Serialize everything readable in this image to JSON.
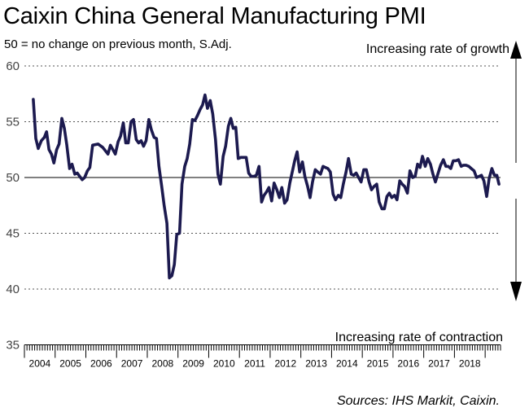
{
  "title": "Caixin China General Manufacturing PMI",
  "subtitle": "50 = no change on previous month, S.Adj.",
  "source": "Sources: IHS Markit, Caixin.",
  "chart_data": {
    "type": "line",
    "annotations": {
      "top": "Increasing rate of growth",
      "bottom": "Increasing rate of contraction"
    },
    "ylim": [
      35,
      60
    ],
    "yticks": [
      "60",
      "55",
      "50",
      "45",
      "40",
      "35"
    ],
    "reference_line": 50,
    "x_years": [
      "2004",
      "2005",
      "2006",
      "2007",
      "2008",
      "2009",
      "2010",
      "2011",
      "2012",
      "2013",
      "2014",
      "2015",
      "2016",
      "2017",
      "2018"
    ],
    "series": [
      {
        "color": "#1c1a4f",
        "points": [
          [
            2004.29,
            57.0
          ],
          [
            2004.37,
            53.5
          ],
          [
            2004.45,
            52.6
          ],
          [
            2004.55,
            53.3
          ],
          [
            2004.65,
            53.6
          ],
          [
            2004.72,
            54.1
          ],
          [
            2004.8,
            52.5
          ],
          [
            2004.88,
            52.1
          ],
          [
            2004.96,
            51.3
          ],
          [
            2005.05,
            52.5
          ],
          [
            2005.13,
            53.0
          ],
          [
            2005.22,
            55.3
          ],
          [
            2005.3,
            54.4
          ],
          [
            2005.38,
            52.9
          ],
          [
            2005.47,
            50.8
          ],
          [
            2005.55,
            51.2
          ],
          [
            2005.64,
            50.3
          ],
          [
            2005.72,
            50.4
          ],
          [
            2005.8,
            50.1
          ],
          [
            2005.88,
            49.8
          ],
          [
            2005.96,
            50.0
          ],
          [
            2006.05,
            50.6
          ],
          [
            2006.13,
            50.9
          ],
          [
            2006.22,
            52.9
          ],
          [
            2006.4,
            53.0
          ],
          [
            2006.55,
            52.7
          ],
          [
            2006.72,
            52.1
          ],
          [
            2006.8,
            52.9
          ],
          [
            2006.88,
            52.5
          ],
          [
            2006.96,
            52.1
          ],
          [
            2007.05,
            53.2
          ],
          [
            2007.13,
            53.7
          ],
          [
            2007.22,
            54.9
          ],
          [
            2007.3,
            53.1
          ],
          [
            2007.38,
            53.1
          ],
          [
            2007.47,
            55.0
          ],
          [
            2007.55,
            55.2
          ],
          [
            2007.64,
            53.4
          ],
          [
            2007.72,
            53.1
          ],
          [
            2007.8,
            53.3
          ],
          [
            2007.88,
            52.8
          ],
          [
            2007.96,
            53.3
          ],
          [
            2008.05,
            55.2
          ],
          [
            2008.13,
            54.3
          ],
          [
            2008.22,
            53.6
          ],
          [
            2008.3,
            53.5
          ],
          [
            2008.38,
            51.0
          ],
          [
            2008.47,
            49.2
          ],
          [
            2008.55,
            47.5
          ],
          [
            2008.64,
            45.9
          ],
          [
            2008.72,
            41.0
          ],
          [
            2008.8,
            41.2
          ],
          [
            2008.88,
            42.2
          ],
          [
            2008.96,
            44.9
          ],
          [
            2009.05,
            45.0
          ],
          [
            2009.13,
            49.4
          ],
          [
            2009.22,
            51.0
          ],
          [
            2009.3,
            51.7
          ],
          [
            2009.38,
            53.0
          ],
          [
            2009.47,
            55.2
          ],
          [
            2009.55,
            55.1
          ],
          [
            2009.64,
            55.6
          ],
          [
            2009.72,
            56.1
          ],
          [
            2009.8,
            56.5
          ],
          [
            2009.88,
            57.4
          ],
          [
            2009.96,
            56.2
          ],
          [
            2010.05,
            56.9
          ],
          [
            2010.13,
            55.7
          ],
          [
            2010.22,
            53.4
          ],
          [
            2010.3,
            50.3
          ],
          [
            2010.38,
            49.4
          ],
          [
            2010.47,
            51.9
          ],
          [
            2010.55,
            52.8
          ],
          [
            2010.64,
            54.6
          ],
          [
            2010.72,
            55.3
          ],
          [
            2010.8,
            54.4
          ],
          [
            2010.88,
            54.5
          ],
          [
            2010.96,
            51.7
          ],
          [
            2011.05,
            51.8
          ],
          [
            2011.22,
            51.8
          ],
          [
            2011.3,
            50.4
          ],
          [
            2011.38,
            50.1
          ],
          [
            2011.47,
            50.1
          ],
          [
            2011.55,
            50.2
          ],
          [
            2011.64,
            51.0
          ],
          [
            2011.72,
            47.8
          ],
          [
            2011.8,
            48.4
          ],
          [
            2011.88,
            48.7
          ],
          [
            2011.96,
            49.1
          ],
          [
            2012.05,
            47.9
          ],
          [
            2012.13,
            49.5
          ],
          [
            2012.22,
            48.9
          ],
          [
            2012.3,
            48.2
          ],
          [
            2012.38,
            49.1
          ],
          [
            2012.47,
            47.7
          ],
          [
            2012.55,
            48.0
          ],
          [
            2012.64,
            49.5
          ],
          [
            2012.72,
            50.5
          ],
          [
            2012.8,
            51.5
          ],
          [
            2012.88,
            52.3
          ],
          [
            2012.96,
            50.5
          ],
          [
            2013.05,
            51.4
          ],
          [
            2013.13,
            50.1
          ],
          [
            2013.22,
            49.2
          ],
          [
            2013.3,
            48.2
          ],
          [
            2013.38,
            49.6
          ],
          [
            2013.47,
            50.7
          ],
          [
            2013.55,
            50.5
          ],
          [
            2013.64,
            50.3
          ],
          [
            2013.72,
            51.0
          ],
          [
            2013.8,
            50.9
          ],
          [
            2013.88,
            50.8
          ],
          [
            2013.96,
            50.5
          ],
          [
            2014.05,
            48.5
          ],
          [
            2014.13,
            48.0
          ],
          [
            2014.22,
            48.4
          ],
          [
            2014.3,
            48.2
          ],
          [
            2014.38,
            49.4
          ],
          [
            2014.47,
            50.5
          ],
          [
            2014.55,
            51.7
          ],
          [
            2014.64,
            50.3
          ],
          [
            2014.72,
            50.2
          ],
          [
            2014.8,
            50.4
          ],
          [
            2014.88,
            50.0
          ],
          [
            2014.96,
            49.6
          ],
          [
            2015.05,
            50.7
          ],
          [
            2015.13,
            50.7
          ],
          [
            2015.22,
            49.6
          ],
          [
            2015.3,
            48.9
          ],
          [
            2015.38,
            49.2
          ],
          [
            2015.47,
            49.4
          ],
          [
            2015.55,
            47.8
          ],
          [
            2015.64,
            47.2
          ],
          [
            2015.72,
            47.2
          ],
          [
            2015.8,
            48.3
          ],
          [
            2015.88,
            48.6
          ],
          [
            2015.96,
            48.2
          ],
          [
            2016.05,
            48.4
          ],
          [
            2016.13,
            48.0
          ],
          [
            2016.22,
            49.7
          ],
          [
            2016.3,
            49.4
          ],
          [
            2016.38,
            49.2
          ],
          [
            2016.47,
            48.6
          ],
          [
            2016.55,
            50.6
          ],
          [
            2016.64,
            50.0
          ],
          [
            2016.72,
            50.1
          ],
          [
            2016.8,
            51.2
          ],
          [
            2016.88,
            50.9
          ],
          [
            2016.96,
            51.9
          ],
          [
            2017.05,
            51.0
          ],
          [
            2017.13,
            51.7
          ],
          [
            2017.22,
            51.2
          ],
          [
            2017.3,
            50.3
          ],
          [
            2017.38,
            49.6
          ],
          [
            2017.47,
            50.4
          ],
          [
            2017.55,
            51.1
          ],
          [
            2017.64,
            51.6
          ],
          [
            2017.72,
            51.0
          ],
          [
            2017.8,
            51.0
          ],
          [
            2017.88,
            50.8
          ],
          [
            2017.96,
            51.5
          ],
          [
            2018.05,
            51.5
          ],
          [
            2018.13,
            51.6
          ],
          [
            2018.22,
            51.0
          ],
          [
            2018.3,
            51.1
          ],
          [
            2018.38,
            51.1
          ],
          [
            2018.47,
            51.0
          ],
          [
            2018.55,
            50.8
          ],
          [
            2018.64,
            50.6
          ],
          [
            2018.72,
            50.0
          ],
          [
            2018.8,
            50.1
          ],
          [
            2018.88,
            50.2
          ],
          [
            2018.96,
            49.7
          ],
          [
            2019.05,
            48.3
          ],
          [
            2019.13,
            49.9
          ],
          [
            2019.22,
            50.8
          ],
          [
            2019.3,
            50.2
          ],
          [
            2019.38,
            50.2
          ],
          [
            2019.45,
            49.4
          ]
        ]
      }
    ]
  }
}
